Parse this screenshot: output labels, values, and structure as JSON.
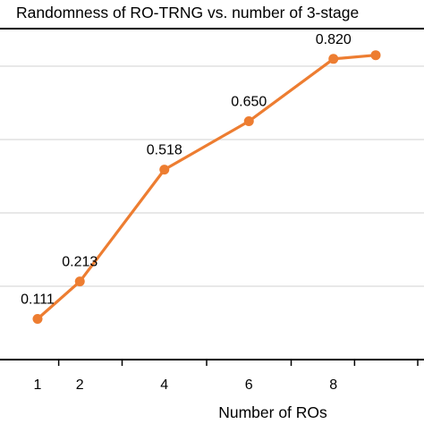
{
  "chart_data": {
    "type": "line",
    "title": "Randomness of RO-TRNG vs. number of 3-stage",
    "xlabel": "Number of ROs",
    "ylabel": "",
    "x_ticks": [
      "1",
      "2",
      "4",
      "6",
      "8"
    ],
    "series": [
      {
        "x": [
          1,
          2,
          4,
          6,
          8,
          9
        ],
        "values": [
          0.111,
          0.213,
          0.518,
          0.65,
          0.82,
          0.83
        ],
        "labels": [
          "0.111",
          "0.213",
          "0.518",
          "0.650",
          "0.820",
          ""
        ]
      }
    ],
    "ylim": [
      0,
      0.9
    ],
    "y_gridlines": [
      0.2,
      0.4,
      0.6,
      0.8
    ],
    "grid": true,
    "legend": "none",
    "colors": {
      "line": "#ed7d31",
      "grid": "#d9d9d9",
      "axis": "#000000"
    }
  }
}
